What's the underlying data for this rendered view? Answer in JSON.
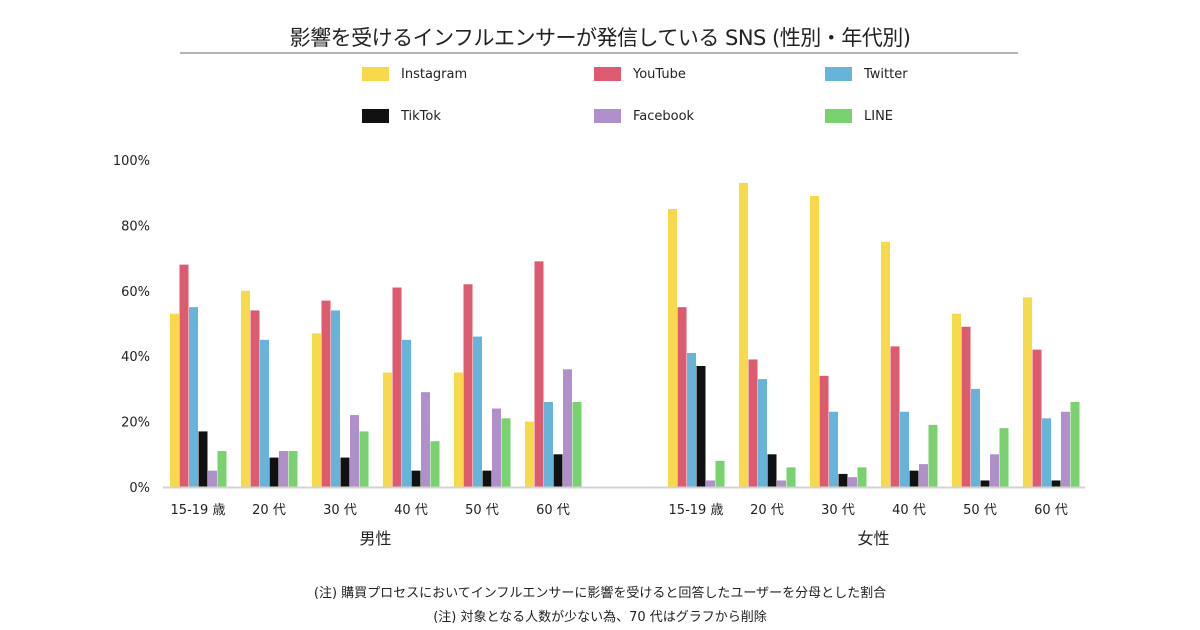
{
  "chart_data": {
    "type": "bar",
    "title": "影響を受けるインフルエンサーが発信している SNS (性別・年代別)",
    "xlabel": "",
    "ylabel": "",
    "ylim": [
      0,
      100
    ],
    "yticks": [
      "0%",
      "20%",
      "40%",
      "60%",
      "80%",
      "100%"
    ],
    "ytick_values": [
      0,
      20,
      40,
      60,
      80,
      100
    ],
    "grid": false,
    "legend_position": "top",
    "groups": [
      {
        "name": "男性",
        "categories": [
          "15-19 歳",
          "20 代",
          "30 代",
          "40 代",
          "50 代",
          "60 代"
        ],
        "series": [
          {
            "name": "Instagram",
            "color": "#F7D94C",
            "values": [
              53,
              60,
              47,
              35,
              35,
              20
            ]
          },
          {
            "name": "YouTube",
            "color": "#DC5B6E",
            "values": [
              68,
              54,
              57,
              61,
              62,
              69
            ]
          },
          {
            "name": "Twitter",
            "color": "#67B4DB",
            "values": [
              55,
              45,
              54,
              45,
              46,
              26
            ]
          },
          {
            "name": "TikTok",
            "color": "#111111",
            "values": [
              17,
              9,
              9,
              5,
              5,
              10
            ]
          },
          {
            "name": "Facebook",
            "color": "#B18FCB",
            "values": [
              5,
              11,
              22,
              29,
              24,
              36
            ]
          },
          {
            "name": "LINE",
            "color": "#79D26F",
            "values": [
              11,
              11,
              17,
              14,
              21,
              26
            ]
          }
        ]
      },
      {
        "name": "女性",
        "categories": [
          "15-19 歳",
          "20 代",
          "30 代",
          "40 代",
          "50 代",
          "60 代"
        ],
        "series": [
          {
            "name": "Instagram",
            "color": "#F7D94C",
            "values": [
              85,
              93,
              89,
              75,
              53,
              58
            ]
          },
          {
            "name": "YouTube",
            "color": "#DC5B6E",
            "values": [
              55,
              39,
              34,
              43,
              49,
              42
            ]
          },
          {
            "name": "Twitter",
            "color": "#67B4DB",
            "values": [
              41,
              33,
              23,
              23,
              30,
              21
            ]
          },
          {
            "name": "TikTok",
            "color": "#111111",
            "values": [
              37,
              10,
              4,
              5,
              2,
              2
            ]
          },
          {
            "name": "Facebook",
            "color": "#B18FCB",
            "values": [
              2,
              2,
              3,
              7,
              10,
              23
            ]
          },
          {
            "name": "LINE",
            "color": "#79D26F",
            "values": [
              8,
              6,
              6,
              19,
              18,
              26
            ]
          }
        ]
      }
    ]
  },
  "legend": [
    {
      "label": "Instagram",
      "color": "#F7D94C"
    },
    {
      "label": "YouTube",
      "color": "#DC5B6E"
    },
    {
      "label": "Twitter",
      "color": "#67B4DB"
    },
    {
      "label": "TikTok",
      "color": "#111111"
    },
    {
      "label": "Facebook",
      "color": "#B18FCB"
    },
    {
      "label": "LINE",
      "color": "#79D26F"
    }
  ],
  "footnotes": [
    "(注) 購買プロセスにおいてインフルエンサーに影響を受けると回答したユーザーを分母とした割合",
    "(注) 対象となる人数が少ない為、70 代はグラフから削除"
  ]
}
